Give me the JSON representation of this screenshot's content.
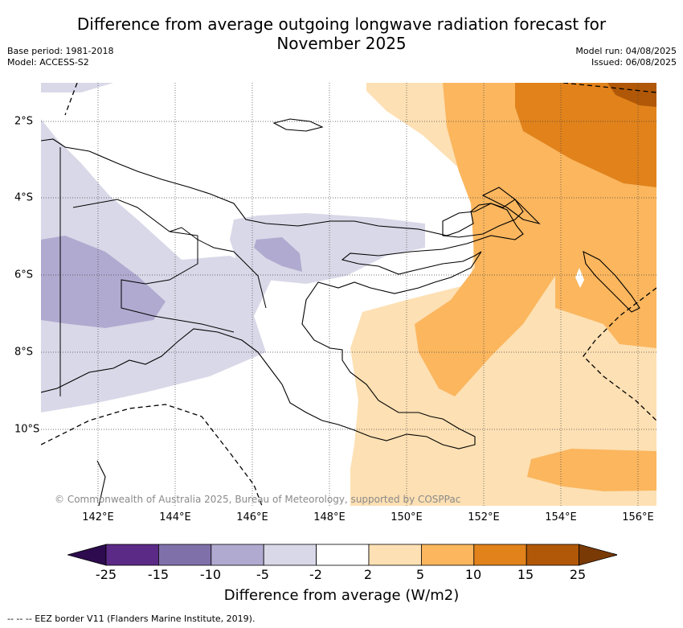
{
  "title_line1": "Difference from average outgoing longwave radiation forecast for",
  "title_line2": "November 2025",
  "base_period": "Base period: 1981-2018",
  "model": "Model: ACCESS-S2",
  "model_run": "Model run: 04/08/2025",
  "issued": "Issued: 06/08/2025",
  "credit": "© Commonwealth of Australia 2025, Bureau of Meteorology, supported by COSPPac",
  "longitude_labels": [
    "142°E",
    "144°E",
    "146°E",
    "148°E",
    "150°E",
    "152°E",
    "154°E",
    "156°E"
  ],
  "latitude_labels": [
    "2°S",
    "4°S",
    "6°S",
    "8°S",
    "10°S"
  ],
  "colorbar": {
    "title": "Difference from average (W/m2)",
    "ticks": [
      "-25",
      "-15",
      "-10",
      "-5",
      "-2",
      "2",
      "5",
      "10",
      "15",
      "25"
    ],
    "colors": [
      "#2d0b4e",
      "#5b2a86",
      "#8070aa",
      "#b1aad0",
      "#d9d8e8",
      "#ffffff",
      "#fde0b3",
      "#fbb65e",
      "#e1821b",
      "#b05808",
      "#7a3a06"
    ]
  },
  "footnote": "--  --  -- EEZ border V11 (Flanders Marine Institute, 2019)."
}
